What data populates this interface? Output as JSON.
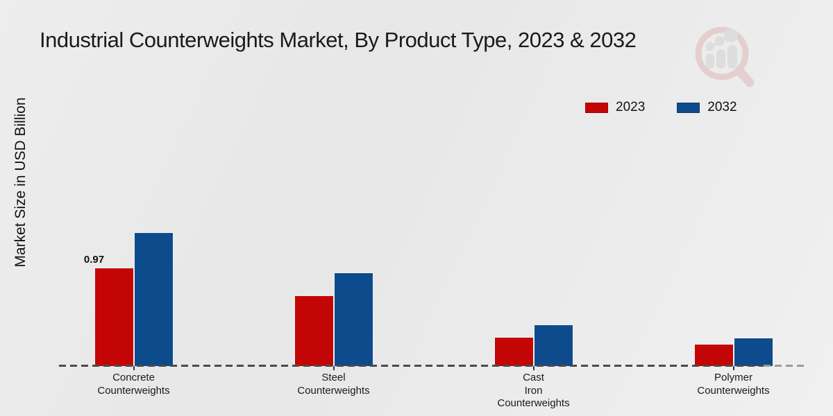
{
  "page": {
    "title": "Industrial Counterweights Market, By Product Type, 2023 & 2032",
    "ylabel": "Market Size in USD Billion"
  },
  "colors": {
    "series_2023": "#c40505",
    "series_2032": "#0e4b8c",
    "bottom_strip": "#c40000",
    "baseline_dash": "#4a4a4a",
    "background": "#eaeaea",
    "watermark_ring": "#dfb9b9",
    "watermark_gray": "#d2d2d2"
  },
  "chart_data": {
    "type": "bar",
    "title": "Industrial Counterweights Market, By Product Type, 2023 & 2032",
    "xlabel": "",
    "ylabel": "Market Size in USD Billion",
    "categories": [
      "Concrete Counterweights",
      "Steel Counterweights",
      "Cast Iron Counterweights",
      "Polymer Counterweights"
    ],
    "category_label_lines": [
      [
        "Concrete",
        "Counterweights"
      ],
      [
        "Steel",
        "Counterweights"
      ],
      [
        "Cast",
        "Iron",
        "Counterweights"
      ],
      [
        "Polymer",
        "Counterweights"
      ]
    ],
    "series": [
      {
        "name": "2023",
        "color": "#c40505",
        "values": [
          0.97,
          0.7,
          0.29,
          0.22
        ]
      },
      {
        "name": "2032",
        "color": "#0e4b8c",
        "values": [
          1.32,
          0.92,
          0.41,
          0.28
        ]
      }
    ],
    "data_labels": [
      {
        "series_index": 0,
        "category_index": 0,
        "text": "0.97"
      }
    ],
    "ylim": [
      0,
      1.45
    ],
    "grid": false,
    "legend_position": "upper-right",
    "baseline_style": "dashed",
    "y_axis_ticks_visible": false
  }
}
